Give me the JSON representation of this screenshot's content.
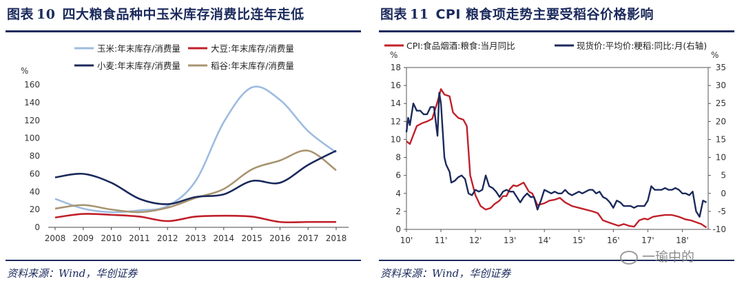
{
  "left": {
    "title_prefix": "图表",
    "title_num": "10",
    "title_text": "四大粮食品种中玉米库存消费比连年走低",
    "source": "资料来源：Wind，华创证券",
    "chart_data": {
      "type": "line",
      "title": "四大粮食品种中玉米库存消费比连年走低",
      "ylabel": "%",
      "ylim": [
        0,
        160
      ],
      "yticks": [
        "0",
        "20",
        "40",
        "60",
        "80",
        "100",
        "120",
        "140",
        "160"
      ],
      "x": [
        2008,
        2009,
        2010,
        2011,
        2012,
        2013,
        2014,
        2015,
        2016,
        2017,
        2018
      ],
      "xticks": [
        "2008",
        "2009",
        "2010",
        "2011",
        "2012",
        "2013",
        "2014",
        "2015",
        "2016",
        "2017",
        "2018"
      ],
      "series": [
        {
          "name": "玉米:年末库存/消费量",
          "color": "#9dbbe0",
          "values": [
            32,
            21,
            17,
            19,
            24,
            52,
            118,
            157,
            143,
            108,
            84
          ]
        },
        {
          "name": "大豆:年末库存/消费量",
          "color": "#c0202a",
          "values": [
            11,
            15,
            14,
            12,
            7,
            12,
            13,
            12,
            6,
            6,
            6
          ]
        },
        {
          "name": "小麦:年末库存/消费量",
          "color": "#1b2a5c",
          "values": [
            56,
            60,
            50,
            32,
            26,
            34,
            37,
            52,
            50,
            70,
            86
          ]
        },
        {
          "name": "稻谷:年末库存/消费量",
          "color": "#a89470",
          "values": [
            21,
            25,
            20,
            17,
            22,
            33,
            43,
            65,
            75,
            86,
            64
          ]
        }
      ]
    }
  },
  "right": {
    "title_prefix": "图表",
    "title_num": "11",
    "title_text": "CPI 粮食项走势主要受稻谷价格影响",
    "source": "资料来源：Wind，华创证券",
    "watermark": "一瑜中的",
    "chart_data": {
      "type": "line",
      "title": "CPI 粮食项走势主要受稻谷价格影响",
      "ylabel_left": "%",
      "ylabel_right": "%",
      "ylim_left": [
        0,
        18
      ],
      "ylim_right": [
        -10,
        35
      ],
      "yticks_left": [
        "0",
        "2",
        "4",
        "6",
        "8",
        "10",
        "12",
        "14",
        "16",
        "18"
      ],
      "yticks_right": [
        "-10",
        "-5",
        "0",
        "5",
        "10",
        "15",
        "20",
        "25",
        "30",
        "35"
      ],
      "xticks": [
        "10'",
        "11'",
        "12'",
        "13'",
        "14'",
        "15'",
        "16'",
        "17'",
        "18'"
      ],
      "xrange": [
        2010.0,
        2018.75
      ],
      "series": [
        {
          "name": "CPI:食品烟酒:粮食:当月同比",
          "axis": "left",
          "color": "#c0202a",
          "x": [
            2010.0,
            2010.1,
            2010.2,
            2010.3,
            2010.45,
            2010.6,
            2010.75,
            2010.9,
            2011.0,
            2011.1,
            2011.25,
            2011.35,
            2011.5,
            2011.65,
            2011.75,
            2011.85,
            2012.0,
            2012.15,
            2012.3,
            2012.45,
            2012.55,
            2012.7,
            2012.8,
            2012.9,
            2013.0,
            2013.1,
            2013.2,
            2013.3,
            2013.4,
            2013.55,
            2013.65,
            2013.8,
            2014.0,
            2014.15,
            2014.3,
            2014.45,
            2014.6,
            2014.8,
            2015.0,
            2015.2,
            2015.4,
            2015.55,
            2015.7,
            2015.85,
            2016.0,
            2016.15,
            2016.3,
            2016.45,
            2016.6,
            2016.75,
            2016.9,
            2017.0,
            2017.15,
            2017.3,
            2017.5,
            2017.7,
            2017.9,
            2018.1,
            2018.25,
            2018.4,
            2018.55,
            2018.7
          ],
          "values": [
            9.8,
            9.5,
            10.5,
            11.5,
            11.8,
            12.0,
            12.3,
            14.2,
            15.6,
            15.0,
            14.8,
            13.0,
            12.4,
            12.2,
            11.5,
            6.0,
            3.8,
            2.6,
            2.2,
            2.4,
            2.8,
            3.2,
            3.7,
            3.7,
            4.5,
            4.9,
            4.8,
            5.0,
            5.2,
            4.2,
            4.0,
            2.7,
            2.9,
            3.2,
            3.3,
            3.5,
            3.0,
            2.6,
            2.4,
            2.2,
            2.0,
            1.8,
            1.0,
            0.8,
            0.6,
            0.4,
            0.6,
            0.4,
            0.3,
            1.0,
            1.2,
            1.1,
            1.4,
            1.5,
            1.6,
            1.6,
            1.4,
            1.1,
            1.0,
            0.8,
            0.6,
            0.2
          ]
        },
        {
          "name": "现货价:平均价:粳稻:同比:月(右轴)",
          "axis": "right",
          "color": "#1b2a5c",
          "x": [
            2010.0,
            2010.05,
            2010.1,
            2010.2,
            2010.3,
            2010.4,
            2010.5,
            2010.6,
            2010.7,
            2010.8,
            2010.85,
            2010.9,
            2010.95,
            2011.0,
            2011.1,
            2011.15,
            2011.25,
            2011.3,
            2011.4,
            2011.5,
            2011.6,
            2011.7,
            2011.8,
            2011.9,
            2012.0,
            2012.1,
            2012.2,
            2012.3,
            2012.4,
            2012.5,
            2012.6,
            2012.7,
            2012.8,
            2012.9,
            2013.0,
            2013.1,
            2013.2,
            2013.3,
            2013.4,
            2013.5,
            2013.6,
            2013.7,
            2013.8,
            2013.9,
            2014.0,
            2014.1,
            2014.2,
            2014.3,
            2014.4,
            2014.5,
            2014.6,
            2014.7,
            2014.8,
            2014.9,
            2015.0,
            2015.1,
            2015.2,
            2015.3,
            2015.4,
            2015.5,
            2015.6,
            2015.7,
            2015.8,
            2015.9,
            2016.0,
            2016.1,
            2016.2,
            2016.3,
            2016.4,
            2016.5,
            2016.6,
            2016.7,
            2016.8,
            2016.9,
            2017.0,
            2017.1,
            2017.2,
            2017.3,
            2017.4,
            2017.5,
            2017.6,
            2017.7,
            2017.8,
            2017.9,
            2018.0,
            2018.1,
            2018.2,
            2018.3,
            2018.4,
            2018.5,
            2018.6,
            2018.7
          ],
          "values": [
            17,
            21,
            19,
            25,
            23,
            23,
            22,
            22,
            24,
            24,
            20,
            16,
            28,
            25,
            10,
            8,
            6,
            3,
            3.5,
            4.5,
            5,
            4,
            0,
            -0.5,
            1,
            0.5,
            1,
            5,
            2,
            1.5,
            0.5,
            -1,
            0.5,
            1,
            0.5,
            0.5,
            -1,
            -2.5,
            -1,
            0,
            -1,
            -1,
            -4.5,
            -2,
            1,
            0.5,
            0,
            0.5,
            0,
            0,
            1,
            0,
            -0.5,
            0,
            0.5,
            0,
            0.5,
            1,
            1,
            0,
            0.5,
            -1,
            -1.5,
            -2.5,
            -4,
            -2,
            -2.5,
            -3.5,
            -3.5,
            -3.5,
            -4,
            -3.5,
            -3.5,
            -3.5,
            -2,
            2,
            1,
            1,
            1,
            1.5,
            1,
            1,
            1.5,
            1,
            0,
            0,
            -0.5,
            0.5,
            -5,
            -6.5,
            -2,
            -2.5
          ]
        }
      ]
    }
  }
}
